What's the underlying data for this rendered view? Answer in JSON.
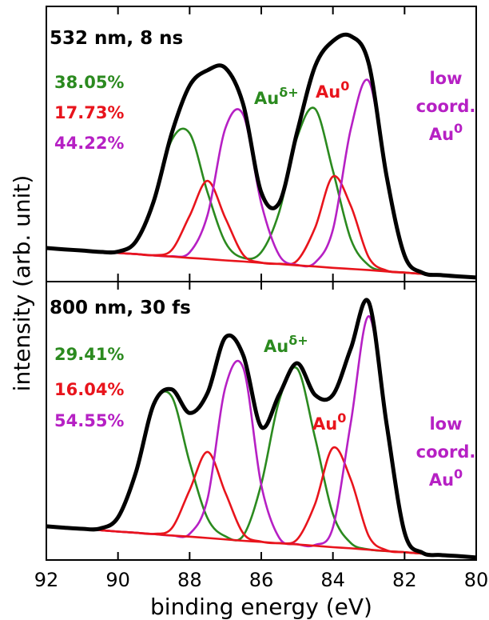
{
  "chart_data": [
    {
      "type": "line",
      "title": "532 nm, 8 ns",
      "ylabel": "intensity (arb. unit)",
      "x": [
        92,
        91.5,
        91,
        90.5,
        90,
        89.5,
        89,
        88.5,
        88,
        87.5,
        87,
        86.5,
        86,
        85.5,
        85,
        84.5,
        84,
        83.5,
        83,
        82.5,
        82,
        81.5,
        81,
        80.5,
        80
      ],
      "xlim": [
        92,
        80
      ],
      "ylim": [
        0,
        100
      ],
      "series": [
        {
          "color": "#2b8a1f",
          "values": [
            12.2,
            11.7,
            11.3,
            10.8,
            10.9,
            14.6,
            29.2,
            51.4,
            53.9,
            32.4,
            14.2,
            8.6,
            10.7,
            25.3,
            52.4,
            62.8,
            40.3,
            15.4,
            5.9,
            3.8,
            3.3,
            2.8,
            2.4,
            1.9,
            1.5
          ]
        },
        {
          "color": "#e8141c",
          "values": [
            12.2,
            11.7,
            11.3,
            10.8,
            10.4,
            10.0,
            9.6,
            11.5,
            23.9,
            36.6,
            23.0,
            9.7,
            6.9,
            6.5,
            7.6,
            19.5,
            38.2,
            27.5,
            8.8,
            4.0,
            3.3,
            2.8,
            2.4,
            1.9,
            1.5
          ]
        },
        {
          "color": "#b620c4",
          "values": [
            12.2,
            11.7,
            11.3,
            10.8,
            10.4,
            10.0,
            9.5,
            9.2,
            10.6,
            24.2,
            55.8,
            60.5,
            28.4,
            9.6,
            6.1,
            6.9,
            18.9,
            55.5,
            72.9,
            37.8,
            9.5,
            3.2,
            2.4,
            1.9,
            1.5
          ]
        },
        {
          "color": "#e8141c",
          "values": [
            12.2,
            11.7,
            11.3,
            10.8,
            10.4,
            10.0,
            9.5,
            9.1,
            8.6,
            8.2,
            7.7,
            7.3,
            6.8,
            6.4,
            5.9,
            5.5,
            5.0,
            4.6,
            4.2,
            3.7,
            3.3,
            2.8,
            2.4,
            1.9,
            1.5
          ]
        },
        {
          "color": "#000000",
          "values": [
            12.2,
            11.7,
            11.3,
            10.8,
            10.9,
            14.6,
            29.3,
            53.9,
            71.2,
            76.8,
            77.6,
            64.2,
            32.4,
            28.6,
            54.3,
            78.2,
            87.4,
            89.2,
            79.2,
            38.2,
            9.5,
            3.2,
            2.4,
            1.9,
            1.5
          ]
        }
      ],
      "annotations": [
        {
          "text": "38.05%",
          "color": "#2b8a1f"
        },
        {
          "text": "17.73%",
          "color": "#e8141c"
        },
        {
          "text": "44.22%",
          "color": "#b620c4"
        },
        {
          "text": "Au",
          "sup": "δ+",
          "color": "#2b8a1f"
        },
        {
          "text": "Au",
          "sup": "0",
          "color": "#e8141c"
        },
        {
          "lines": [
            "low",
            "coord."
          ],
          "text": "Au",
          "sup": "0",
          "color": "#b620c4"
        }
      ]
    },
    {
      "type": "line",
      "title": "800 nm, 30 fs",
      "xlabel": "binding energy (eV)",
      "x": [
        92,
        91.5,
        91,
        90.5,
        90,
        89.5,
        89,
        88.5,
        88,
        87.5,
        87,
        86.5,
        86,
        85.5,
        85,
        84.5,
        84,
        83.5,
        83,
        82.5,
        82,
        81.5,
        81,
        80.5,
        80
      ],
      "xlim": [
        92,
        80
      ],
      "xticks": [
        92,
        90,
        88,
        86,
        84,
        82,
        80
      ],
      "ylim": [
        0,
        100
      ],
      "series": [
        {
          "color": "#2b8a1f",
          "values": [
            12.1,
            11.6,
            11.2,
            11.3,
            15.3,
            31.5,
            55.9,
            58.7,
            35.1,
            15.0,
            8.5,
            8.8,
            27.3,
            57.3,
            68.8,
            44.0,
            16.5,
            6.1,
            3.8,
            3.2,
            2.8,
            2.3,
            1.8,
            1.4,
            0.9
          ]
        },
        {
          "color": "#e8141c",
          "values": [
            12.1,
            11.6,
            11.2,
            10.7,
            10.2,
            9.8,
            9.4,
            11.4,
            25.1,
            38.8,
            24.1,
            9.5,
            6.6,
            6.1,
            7.4,
            20.1,
            40.3,
            28.9,
            8.6,
            3.5,
            2.8,
            2.3,
            1.8,
            1.4,
            0.9
          ]
        },
        {
          "color": "#b620c4",
          "values": [
            12.1,
            11.6,
            11.2,
            10.7,
            10.2,
            9.8,
            9.3,
            8.8,
            9.4,
            22.0,
            62.2,
            68.9,
            26.9,
            8.0,
            5.7,
            5.4,
            11.7,
            49.4,
            87.6,
            48.4,
            9.9,
            2.6,
            1.8,
            1.4,
            0.9
          ]
        },
        {
          "color": "#e8141c",
          "values": [
            12.1,
            11.6,
            11.2,
            10.7,
            10.2,
            9.8,
            9.3,
            8.8,
            8.4,
            7.9,
            7.4,
            6.9,
            6.5,
            6.0,
            5.6,
            5.1,
            4.6,
            4.2,
            3.7,
            3.2,
            2.8,
            2.3,
            1.8,
            1.4,
            0.9
          ]
        },
        {
          "color": "#000000",
          "values": [
            12.1,
            11.6,
            11.2,
            11.3,
            15.3,
            31.5,
            56.0,
            61.3,
            52.8,
            60.0,
            80.0,
            73.4,
            47.8,
            59.4,
            70.7,
            59.3,
            59.3,
            76.0,
            92.6,
            48.7,
            9.9,
            2.6,
            1.8,
            1.4,
            0.9
          ]
        }
      ],
      "annotations": [
        {
          "text": "29.41%",
          "color": "#2b8a1f"
        },
        {
          "text": "16.04%",
          "color": "#e8141c"
        },
        {
          "text": "54.55%",
          "color": "#b620c4"
        },
        {
          "text": "Au",
          "sup": "δ+",
          "color": "#2b8a1f"
        },
        {
          "text": "Au",
          "sup": "0",
          "color": "#e8141c"
        },
        {
          "lines": [
            "low",
            "coord."
          ],
          "text": "Au",
          "sup": "0",
          "color": "#b620c4"
        }
      ]
    }
  ]
}
